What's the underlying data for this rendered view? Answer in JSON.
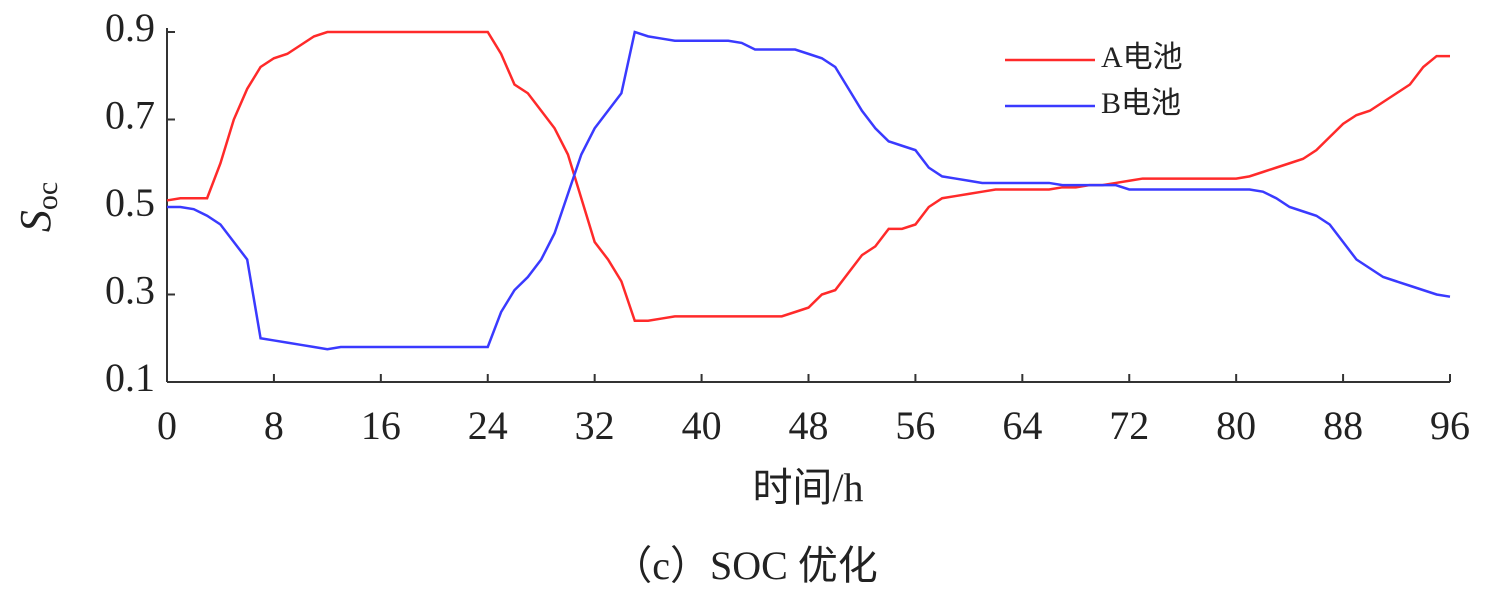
{
  "chart_data": {
    "type": "line",
    "ylabel": {
      "main": "S",
      "sub": "oc"
    },
    "xlabel": "时间/h",
    "caption": "（c）SOC 优化",
    "xlim": [
      0,
      96
    ],
    "xticks": [
      0,
      8,
      16,
      24,
      32,
      40,
      48,
      56,
      64,
      72,
      80,
      88,
      96
    ],
    "ylim": [
      0.1,
      0.9
    ],
    "yticks": [
      0.1,
      0.3,
      0.5,
      0.7,
      0.9
    ],
    "legend": "upper right",
    "x": [
      0,
      1,
      2,
      3,
      4,
      5,
      6,
      7,
      8,
      9,
      10,
      11,
      12,
      13,
      14,
      15,
      16,
      17,
      18,
      19,
      20,
      21,
      22,
      23,
      24,
      25,
      26,
      27,
      28,
      29,
      30,
      31,
      32,
      33,
      34,
      35,
      36,
      37,
      38,
      39,
      40,
      41,
      42,
      43,
      44,
      45,
      46,
      47,
      48,
      49,
      50,
      51,
      52,
      53,
      54,
      55,
      56,
      57,
      58,
      59,
      60,
      61,
      62,
      63,
      64,
      65,
      66,
      67,
      68,
      69,
      70,
      71,
      72,
      73,
      74,
      75,
      76,
      77,
      78,
      79,
      80,
      81,
      82,
      83,
      84,
      85,
      86,
      87,
      88,
      89,
      90,
      91,
      92,
      93,
      94,
      95,
      96
    ],
    "series": [
      {
        "name": "A电池",
        "color": "#ff2a2a",
        "values": [
          0.515,
          0.52,
          0.52,
          0.52,
          0.6,
          0.7,
          0.77,
          0.82,
          0.84,
          0.85,
          0.87,
          0.89,
          0.9,
          0.9,
          0.9,
          0.9,
          0.9,
          0.9,
          0.9,
          0.9,
          0.9,
          0.9,
          0.9,
          0.9,
          0.9,
          0.85,
          0.78,
          0.76,
          0.72,
          0.68,
          0.62,
          0.52,
          0.42,
          0.38,
          0.33,
          0.24,
          0.24,
          0.245,
          0.25,
          0.25,
          0.25,
          0.25,
          0.25,
          0.25,
          0.25,
          0.25,
          0.25,
          0.26,
          0.27,
          0.3,
          0.31,
          0.35,
          0.39,
          0.41,
          0.45,
          0.45,
          0.46,
          0.5,
          0.52,
          0.525,
          0.53,
          0.535,
          0.54,
          0.54,
          0.54,
          0.54,
          0.54,
          0.545,
          0.545,
          0.55,
          0.55,
          0.555,
          0.56,
          0.565,
          0.565,
          0.565,
          0.565,
          0.565,
          0.565,
          0.565,
          0.565,
          0.57,
          0.58,
          0.59,
          0.6,
          0.61,
          0.63,
          0.66,
          0.69,
          0.71,
          0.72,
          0.74,
          0.76,
          0.78,
          0.82,
          0.845,
          0.845
        ]
      },
      {
        "name": "B电池",
        "color": "#3a3aff",
        "values": [
          0.5,
          0.5,
          0.495,
          0.48,
          0.46,
          0.42,
          0.38,
          0.2,
          0.195,
          0.19,
          0.185,
          0.18,
          0.175,
          0.18,
          0.18,
          0.18,
          0.18,
          0.18,
          0.18,
          0.18,
          0.18,
          0.18,
          0.18,
          0.18,
          0.18,
          0.26,
          0.31,
          0.34,
          0.38,
          0.44,
          0.53,
          0.62,
          0.68,
          0.72,
          0.76,
          0.9,
          0.89,
          0.885,
          0.88,
          0.88,
          0.88,
          0.88,
          0.88,
          0.875,
          0.86,
          0.86,
          0.86,
          0.86,
          0.85,
          0.84,
          0.82,
          0.77,
          0.72,
          0.68,
          0.65,
          0.64,
          0.63,
          0.59,
          0.57,
          0.565,
          0.56,
          0.555,
          0.555,
          0.555,
          0.555,
          0.555,
          0.555,
          0.55,
          0.55,
          0.55,
          0.55,
          0.55,
          0.54,
          0.54,
          0.54,
          0.54,
          0.54,
          0.54,
          0.54,
          0.54,
          0.54,
          0.54,
          0.535,
          0.52,
          0.5,
          0.49,
          0.48,
          0.46,
          0.42,
          0.38,
          0.36,
          0.34,
          0.33,
          0.32,
          0.31,
          0.3,
          0.295
        ]
      }
    ]
  }
}
